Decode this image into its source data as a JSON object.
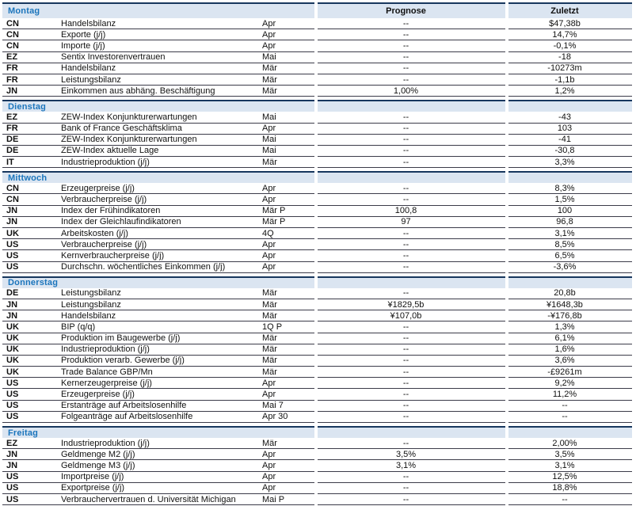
{
  "columns": {
    "prognose": "Prognose",
    "zuletzt": "Zuletzt"
  },
  "colors": {
    "band_background": "#dbe5f1",
    "band_top_border": "#17375e",
    "day_label_blue": "#1b75bc",
    "row_separator": "#3b3b49",
    "text": "#111111"
  },
  "sections": [
    {
      "day": "Montag",
      "rows": [
        {
          "country": "CN",
          "indicator": "Handelsbilanz",
          "period": "Apr",
          "prognose": "--",
          "zuletzt": "$47,38b"
        },
        {
          "country": "CN",
          "indicator": "Exporte (j/j)",
          "period": "Apr",
          "prognose": "--",
          "zuletzt": "14,7%"
        },
        {
          "country": "CN",
          "indicator": "Importe (j/j)",
          "period": "Apr",
          "prognose": "--",
          "zuletzt": "-0,1%"
        },
        {
          "country": "EZ",
          "indicator": "Sentix Investorenvertrauen",
          "period": "Mai",
          "prognose": "--",
          "zuletzt": "-18"
        },
        {
          "country": "FR",
          "indicator": "Handelsbilanz",
          "period": "Mär",
          "prognose": "--",
          "zuletzt": "-10273m"
        },
        {
          "country": "FR",
          "indicator": "Leistungsbilanz",
          "period": "Mär",
          "prognose": "--",
          "zuletzt": "-1,1b"
        },
        {
          "country": "JN",
          "indicator": "Einkommen aus abhäng. Beschäftigung",
          "period": "Mär",
          "prognose": "1,00%",
          "zuletzt": "1,2%"
        }
      ]
    },
    {
      "day": "Dienstag",
      "rows": [
        {
          "country": "EZ",
          "indicator": "ZEW-Index Konjunkturerwartungen",
          "period": "Mai",
          "prognose": "--",
          "zuletzt": "-43"
        },
        {
          "country": "FR",
          "indicator": "Bank of France Geschäftsklima",
          "period": "Apr",
          "prognose": "--",
          "zuletzt": "103"
        },
        {
          "country": "DE",
          "indicator": "ZEW-Index Konjunkturerwartungen",
          "period": "Mai",
          "prognose": "--",
          "zuletzt": "-41"
        },
        {
          "country": "DE",
          "indicator": "ZEW-Index aktuelle Lage",
          "period": "Mai",
          "prognose": "--",
          "zuletzt": "-30,8"
        },
        {
          "country": "IT",
          "indicator": "Industrieproduktion (j/j)",
          "period": "Mär",
          "prognose": "--",
          "zuletzt": "3,3%"
        }
      ]
    },
    {
      "day": "Mittwoch",
      "rows": [
        {
          "country": "CN",
          "indicator": "Erzeugerpreise (j/j)",
          "period": "Apr",
          "prognose": "--",
          "zuletzt": "8,3%"
        },
        {
          "country": "CN",
          "indicator": "Verbraucherpreise (j/j)",
          "period": "Apr",
          "prognose": "--",
          "zuletzt": "1,5%"
        },
        {
          "country": "JN",
          "indicator": "Index der Frühindikatoren",
          "period": "Mär P",
          "prognose": "100,8",
          "zuletzt": "100"
        },
        {
          "country": "JN",
          "indicator": "Index der Gleichlaufindikatoren",
          "period": "Mär P",
          "prognose": "97",
          "zuletzt": "96,8"
        },
        {
          "country": "UK",
          "indicator": "Arbeitskosten (j/j)",
          "period": "4Q",
          "prognose": "--",
          "zuletzt": "3,1%"
        },
        {
          "country": "US",
          "indicator": "Verbraucherpreise (j/j)",
          "period": "Apr",
          "prognose": "--",
          "zuletzt": "8,5%"
        },
        {
          "country": "US",
          "indicator": "Kernverbraucherpreise (j/j)",
          "period": "Apr",
          "prognose": "--",
          "zuletzt": "6,5%"
        },
        {
          "country": "US",
          "indicator": "Durchschn. wöchentliches Einkommen (j/j)",
          "period": "Apr",
          "prognose": "--",
          "zuletzt": "-3,6%"
        }
      ]
    },
    {
      "day": "Donnerstag",
      "rows": [
        {
          "country": "DE",
          "indicator": "Leistungsbilanz",
          "period": "Mär",
          "prognose": "--",
          "zuletzt": "20,8b"
        },
        {
          "country": "JN",
          "indicator": "Leistungsbilanz",
          "period": "Mär",
          "prognose": "¥1829,5b",
          "zuletzt": "¥1648,3b"
        },
        {
          "country": "JN",
          "indicator": "Handelsbilanz",
          "period": "Mär",
          "prognose": "¥107,0b",
          "zuletzt": "-¥176,8b"
        },
        {
          "country": "UK",
          "indicator": "BIP (q/q)",
          "period": "1Q P",
          "prognose": "--",
          "zuletzt": "1,3%"
        },
        {
          "country": "UK",
          "indicator": "Produktion im Baugewerbe (j/j)",
          "period": "Mär",
          "prognose": "--",
          "zuletzt": "6,1%"
        },
        {
          "country": "UK",
          "indicator": "Industrieproduktion (j/j)",
          "period": "Mär",
          "prognose": "--",
          "zuletzt": "1,6%"
        },
        {
          "country": "UK",
          "indicator": "Produktion verarb. Gewerbe (j/j)",
          "period": "Mär",
          "prognose": "--",
          "zuletzt": "3,6%"
        },
        {
          "country": "UK",
          "indicator": "Trade Balance GBP/Mn",
          "period": "Mär",
          "prognose": "--",
          "zuletzt": "-£9261m"
        },
        {
          "country": "US",
          "indicator": "Kernerzeugerpreise (j/j)",
          "period": "Apr",
          "prognose": "--",
          "zuletzt": "9,2%"
        },
        {
          "country": "US",
          "indicator": "Erzeugerpreise (j/j)",
          "period": "Apr",
          "prognose": "--",
          "zuletzt": "11,2%"
        },
        {
          "country": "US",
          "indicator": "Erstanträge auf Arbeitslosenhilfe",
          "period": "Mai 7",
          "prognose": "--",
          "zuletzt": "--"
        },
        {
          "country": "US",
          "indicator": "Folgeanträge auf Arbeitslosenhilfe",
          "period": "Apr 30",
          "prognose": "--",
          "zuletzt": "--"
        }
      ]
    },
    {
      "day": "Freitag",
      "rows": [
        {
          "country": "EZ",
          "indicator": "Industrieproduktion (j/j)",
          "period": "Mär",
          "prognose": "--",
          "zuletzt": "2,00%"
        },
        {
          "country": "JN",
          "indicator": "Geldmenge M2 (j/j)",
          "period": "Apr",
          "prognose": "3,5%",
          "zuletzt": "3,5%"
        },
        {
          "country": "JN",
          "indicator": "Geldmenge M3 (j/j)",
          "period": "Apr",
          "prognose": "3,1%",
          "zuletzt": "3,1%"
        },
        {
          "country": "US",
          "indicator": "Importpreise (j/j)",
          "period": "Apr",
          "prognose": "--",
          "zuletzt": "12,5%"
        },
        {
          "country": "US",
          "indicator": "Exportpreise (j/j)",
          "period": "Apr",
          "prognose": "--",
          "zuletzt": "18,8%"
        },
        {
          "country": "US",
          "indicator": "Verbrauchervertrauen d. Universität Michigan",
          "period": "Mai P",
          "prognose": "--",
          "zuletzt": "--"
        }
      ]
    }
  ]
}
